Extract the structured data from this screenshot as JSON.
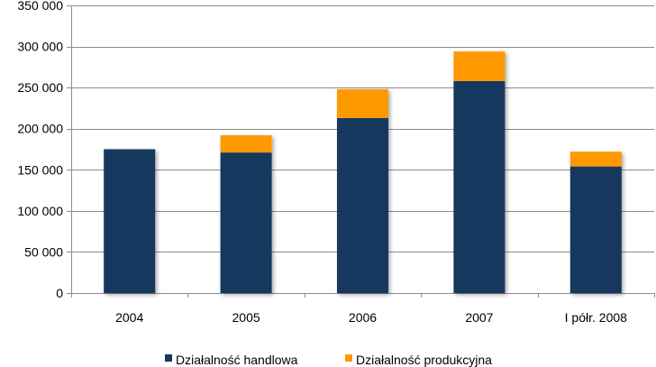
{
  "chart_data": {
    "type": "bar",
    "stacked": true,
    "categories": [
      "2004",
      "2005",
      "2006",
      "2007",
      "I półr. 2008"
    ],
    "series": [
      {
        "name": "Działalność handlowa",
        "color": "#17375e",
        "values": [
          175000,
          171000,
          213000,
          258000,
          154000
        ]
      },
      {
        "name": "Działalność produkcyjna",
        "color": "#ff9900",
        "values": [
          0,
          21000,
          35000,
          36000,
          18000
        ]
      }
    ],
    "ylim": [
      0,
      350000
    ],
    "yticks": [
      0,
      50000,
      100000,
      150000,
      200000,
      250000,
      300000,
      350000
    ],
    "ytick_labels": [
      "0",
      "50 000",
      "100 000",
      "150 000",
      "200 000",
      "250 000",
      "300 000",
      "350 000"
    ],
    "grid": "horizontal",
    "legend_position": "bottom",
    "title": "",
    "xlabel": "",
    "ylabel": ""
  }
}
